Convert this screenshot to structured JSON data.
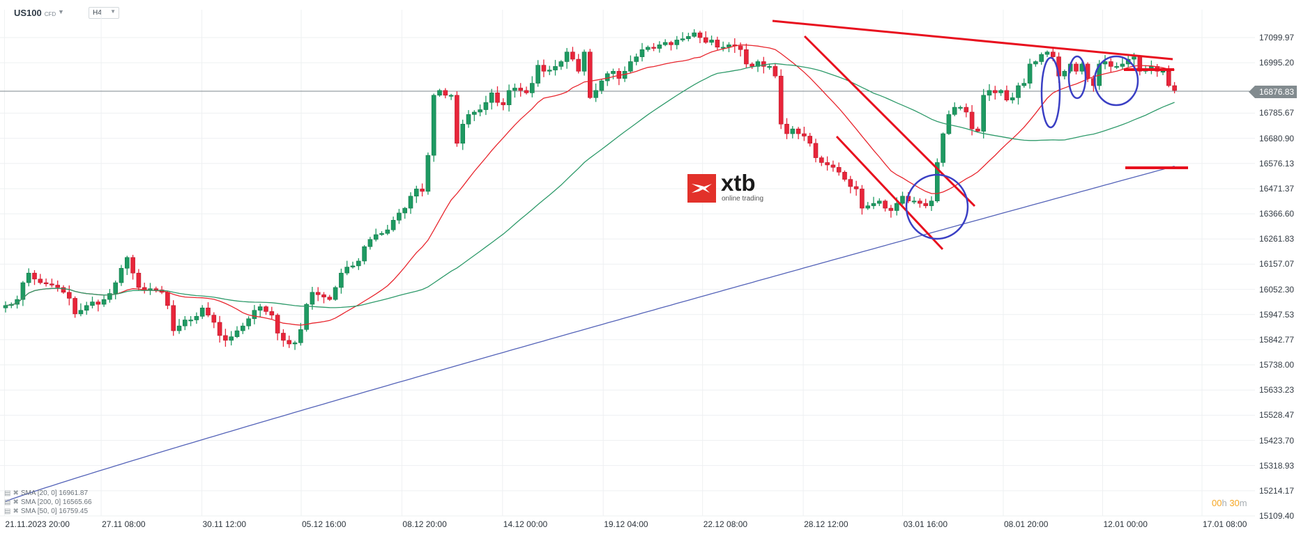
{
  "header": {
    "symbol": "US100",
    "symbol_type": "CFD",
    "timeframe": "H4"
  },
  "watermark": {
    "brand": "xtb",
    "tagline": "online trading"
  },
  "last_price": "16876.83",
  "timer": {
    "hours": "00",
    "h_unit": "h",
    "minutes": "30",
    "m_unit": "m"
  },
  "legend": [
    {
      "label": "SMA [20, 0] 16961.87"
    },
    {
      "label": "SMA [200, 0] 16565.66"
    },
    {
      "label": "SMA [50, 0] 16759.45"
    }
  ],
  "chart_data": {
    "type": "candlestick",
    "title": "US100 CFD H4",
    "xlabel": "",
    "ylabel": "",
    "ylim": [
      15109.4,
      17099.97
    ],
    "grid": true,
    "y_ticks": [
      "17099.97",
      "16995.20",
      "16876.83",
      "16785.67",
      "16680.90",
      "16576.13",
      "16471.37",
      "16366.60",
      "16261.83",
      "16157.07",
      "16052.30",
      "15947.53",
      "15842.77",
      "15738.00",
      "15633.23",
      "15528.47",
      "15423.70",
      "15318.93",
      "15214.17",
      "15109.40"
    ],
    "x_ticks": [
      {
        "label": "21.11.2023  20:00",
        "x": 6
      },
      {
        "label": "27.11  08:00",
        "x": 79
      },
      {
        "label": "30.11  12:00",
        "x": 155
      },
      {
        "label": "05.12  16:00",
        "x": 230
      },
      {
        "label": "08.12  20:00",
        "x": 306
      },
      {
        "label": "14.12  00:00",
        "x": 382
      },
      {
        "label": "19.12  04:00",
        "x": 458
      },
      {
        "label": "22.12  08:00",
        "x": 533
      },
      {
        "label": "28.12  12:00",
        "x": 609
      },
      {
        "label": "03.01  16:00",
        "x": 684
      },
      {
        "label": "08.01  20:00",
        "x": 760
      },
      {
        "label": "12.01  00:00",
        "x": 835
      },
      {
        "label": "17.01  08:00",
        "x": 910
      }
    ],
    "indicators": [
      {
        "name": "SMA [20, 0]",
        "value": 16961.87,
        "color": "#e8262e"
      },
      {
        "name": "SMA [200, 0]",
        "value": 16565.66,
        "color": "#5362b8"
      },
      {
        "name": "SMA [50, 0]",
        "value": 16759.45,
        "color": "#2e9a6a"
      }
    ],
    "annotations": [
      "Descending resistance trendline from ~17120 to ~17010",
      "Descending channel 28.12 to 05.01",
      "Horizontal levels ~16960 and ~16570",
      "Blue circles marking support test near SMA200 and consolidation near highs"
    ],
    "closes": [
      15985,
      15990,
      16010,
      16080,
      16120,
      16095,
      16080,
      16075,
      16070,
      16060,
      16040,
      16015,
      15950,
      15965,
      15985,
      16000,
      15990,
      16010,
      16035,
      16080,
      16140,
      16185,
      16120,
      16060,
      16050,
      16055,
      16050,
      16040,
      15985,
      15880,
      15900,
      15925,
      15925,
      15940,
      15975,
      15945,
      15915,
      15860,
      15840,
      15855,
      15880,
      15900,
      15930,
      15965,
      15980,
      15960,
      15945,
      15870,
      15840,
      15825,
      15830,
      15885,
      15990,
      16040,
      16030,
      16020,
      16010,
      16060,
      16120,
      16145,
      16150,
      16170,
      16230,
      16260,
      16280,
      16285,
      16300,
      16340,
      16370,
      16390,
      16440,
      16470,
      16460,
      16610,
      16860,
      16880,
      16860,
      16860,
      16660,
      16740,
      16780,
      16790,
      16800,
      16830,
      16870,
      16830,
      16820,
      16880,
      16890,
      16880,
      16870,
      16910,
      16985,
      16960,
      16965,
      16980,
      17000,
      17040,
      17010,
      16960,
      17040,
      16850,
      16880,
      16920,
      16950,
      16960,
      16930,
      16960,
      17000,
      17020,
      17050,
      17060,
      17055,
      17070,
      17080,
      17070,
      17090,
      17095,
      17105,
      17120,
      17100,
      17080,
      17090,
      17060,
      17060,
      17070,
      17065,
      17050,
      16990,
      16980,
      17000,
      16980,
      16980,
      16940,
      16740,
      16700,
      16720,
      16700,
      16690,
      16660,
      16600,
      16580,
      16570,
      16560,
      16540,
      16510,
      16480,
      16470,
      16390,
      16400,
      16410,
      16420,
      16390,
      16380,
      16410,
      16440,
      16420,
      16420,
      16410,
      16400,
      16420,
      16580,
      16700,
      16780,
      16810,
      16810,
      16790,
      16720,
      16710,
      16860,
      16880,
      16870,
      16880,
      16840,
      16850,
      16900,
      16910,
      16990,
      17000,
      17030,
      17040,
      17020,
      16940,
      16960,
      16990,
      16960,
      16990,
      16930,
      16900,
      16990,
      17000,
      16980,
      16980,
      16990,
      17010,
      17020,
      16960,
      16970,
      16980,
      16960,
      16960,
      16900,
      16880
    ]
  }
}
